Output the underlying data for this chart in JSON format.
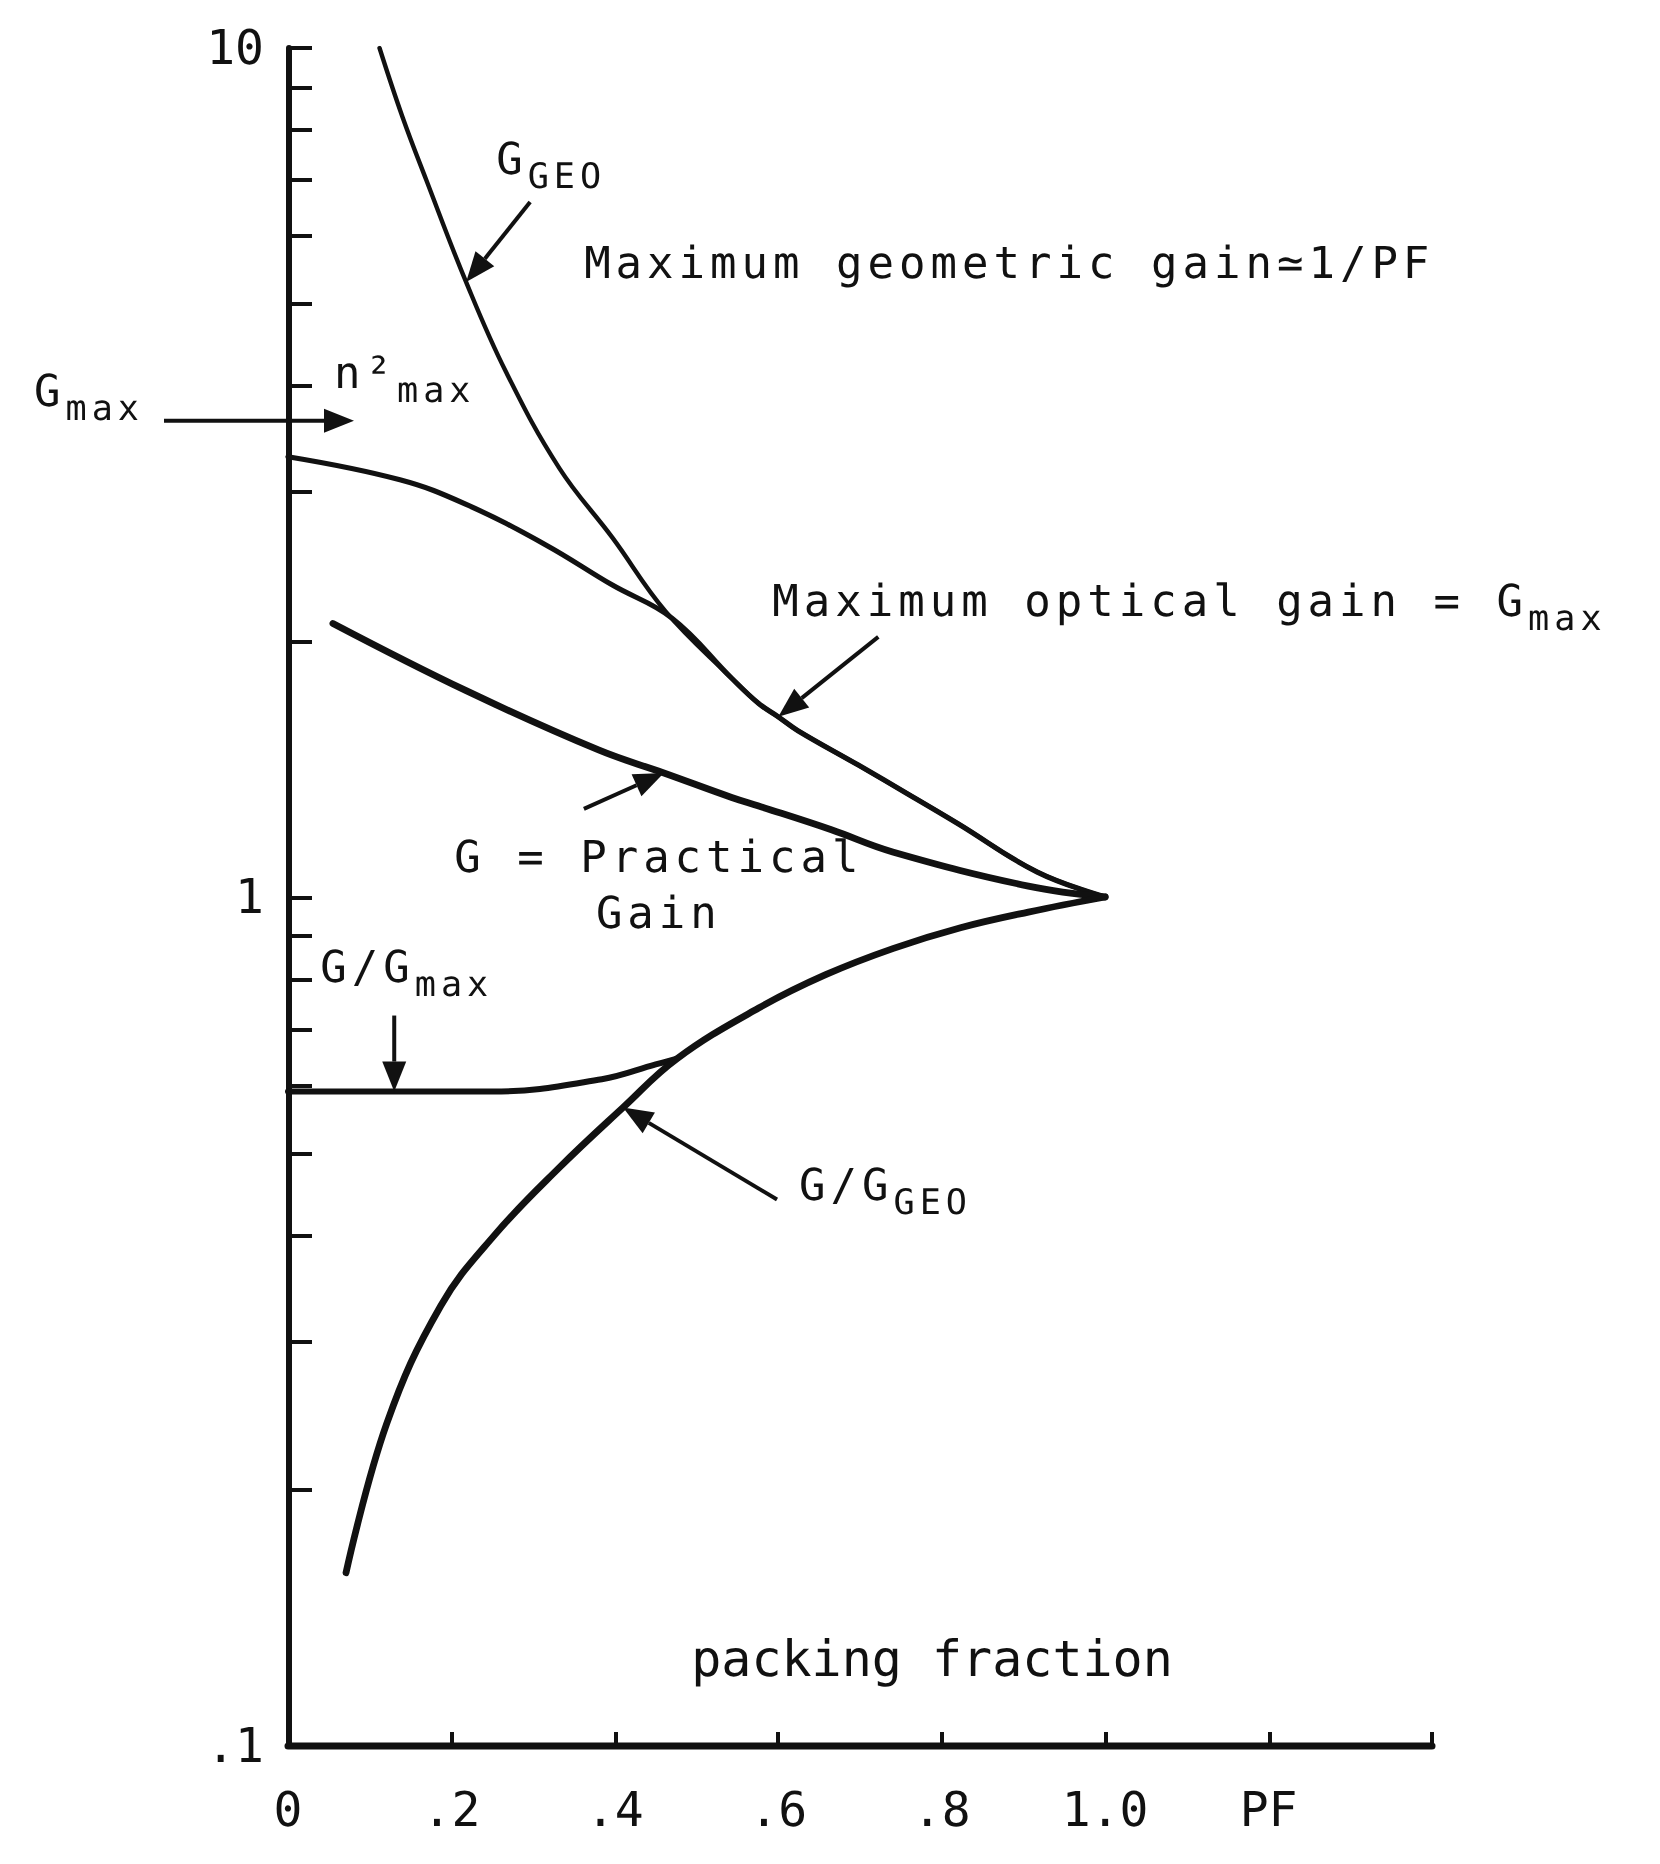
{
  "chart_data": {
    "type": "line",
    "xlabel": "packing fraction",
    "xlim": [
      0,
      1.4
    ],
    "xticks": [
      0,
      {
        "value": 0.2,
        "label": ".2"
      },
      {
        "value": 0.4,
        "label": ".4"
      },
      {
        "value": 0.6,
        "label": ".6"
      },
      {
        "value": 0.8,
        "label": ".8"
      },
      {
        "value": 1,
        "label": "1.0"
      },
      {
        "value": 1.2,
        "label": "PF"
      },
      {
        "value": 1.4,
        "label": null
      }
    ],
    "ylim": [
      0.1,
      10
    ],
    "yticks": [
      {
        "value": 0.1,
        "label": ".1"
      },
      {
        "value": 0.2,
        "label": null
      },
      {
        "value": 0.3,
        "label": null
      },
      {
        "value": 0.4,
        "label": null
      },
      {
        "value": 0.5,
        "label": null
      },
      {
        "value": 0.6,
        "label": null
      },
      {
        "value": 0.7,
        "label": null
      },
      {
        "value": 0.8,
        "label": null
      },
      {
        "value": 0.9,
        "label": null
      },
      1,
      {
        "value": 2,
        "label": null
      },
      {
        "value": 3,
        "label": null
      },
      {
        "value": 4,
        "label": null
      },
      {
        "value": 5,
        "label": null
      },
      {
        "value": 6,
        "label": null
      },
      {
        "value": 7,
        "label": null
      },
      {
        "value": 8,
        "label": null
      },
      {
        "value": 9,
        "label": null
      },
      10
    ],
    "log": "y",
    "marker": "none",
    "line_style": "solid",
    "series": [
      {
        "name": "G$_{GEO}$",
        "color": "#111111",
        "x": [
          0.112,
          0.14,
          0.169,
          0.218,
          0.267,
          0.332,
          0.397,
          0.462,
          0.543,
          0.576,
          0.6,
          0.624,
          0.698,
          0.76,
          0.82,
          0.917,
          1.0
        ],
        "values": [
          10,
          8.3,
          7.0,
          5.3,
          4.15,
          3.2,
          2.65,
          2.17,
          1.81,
          1.69,
          1.63,
          1.57,
          1.43,
          1.32,
          1.22,
          1.07,
          1.0
        ]
      },
      {
        "name": "Maximum optical gain = G$_{max}$",
        "color": "#111111",
        "x": [
          0,
          0.137,
          0.218,
          0.315,
          0.397,
          0.47,
          0.543,
          0.576,
          0.6,
          0.624,
          0.698,
          0.76,
          0.82,
          0.917,
          1.0
        ],
        "values": [
          3.3,
          3.1,
          2.9,
          2.6,
          2.33,
          2.13,
          1.81,
          1.69,
          1.63,
          1.57,
          1.43,
          1.32,
          1.22,
          1.07,
          1.0
        ]
      },
      {
        "name": "G = Practical Gain",
        "color": "#111111",
        "x": [
          0.055,
          0.218,
          0.38,
          0.46,
          0.543,
          0.576,
          0.665,
          0.74,
          0.906,
          1.0
        ],
        "values": [
          2.1,
          1.75,
          1.49,
          1.4,
          1.31,
          1.28,
          1.2,
          1.13,
          1.03,
          1.0
        ]
      },
      {
        "name": "G/G$_{max}$",
        "color": "#111111",
        "x": [
          0,
          0.13,
          0.25,
          0.384,
          0.45,
          0.476
        ],
        "values": [
          0.59,
          0.59,
          0.59,
          0.61,
          0.635,
          0.645
        ]
      },
      {
        "name": "G/G$_{GEO}$",
        "color": "#111111",
        "x": [
          0.071,
          0.121,
          0.187,
          0.253,
          0.332,
          0.41,
          0.476,
          0.576,
          0.658,
          0.741,
          0.823,
          0.906,
          1.0
        ],
        "values": [
          0.16,
          0.24,
          0.33,
          0.4,
          0.48,
          0.565,
          0.645,
          0.74,
          0.81,
          0.87,
          0.92,
          0.96,
          1.0
        ]
      }
    ],
    "annotations": [
      "Maximum geometric gain≃1/PF",
      "G$_{max}$",
      "n²$_{max}$"
    ]
  }
}
